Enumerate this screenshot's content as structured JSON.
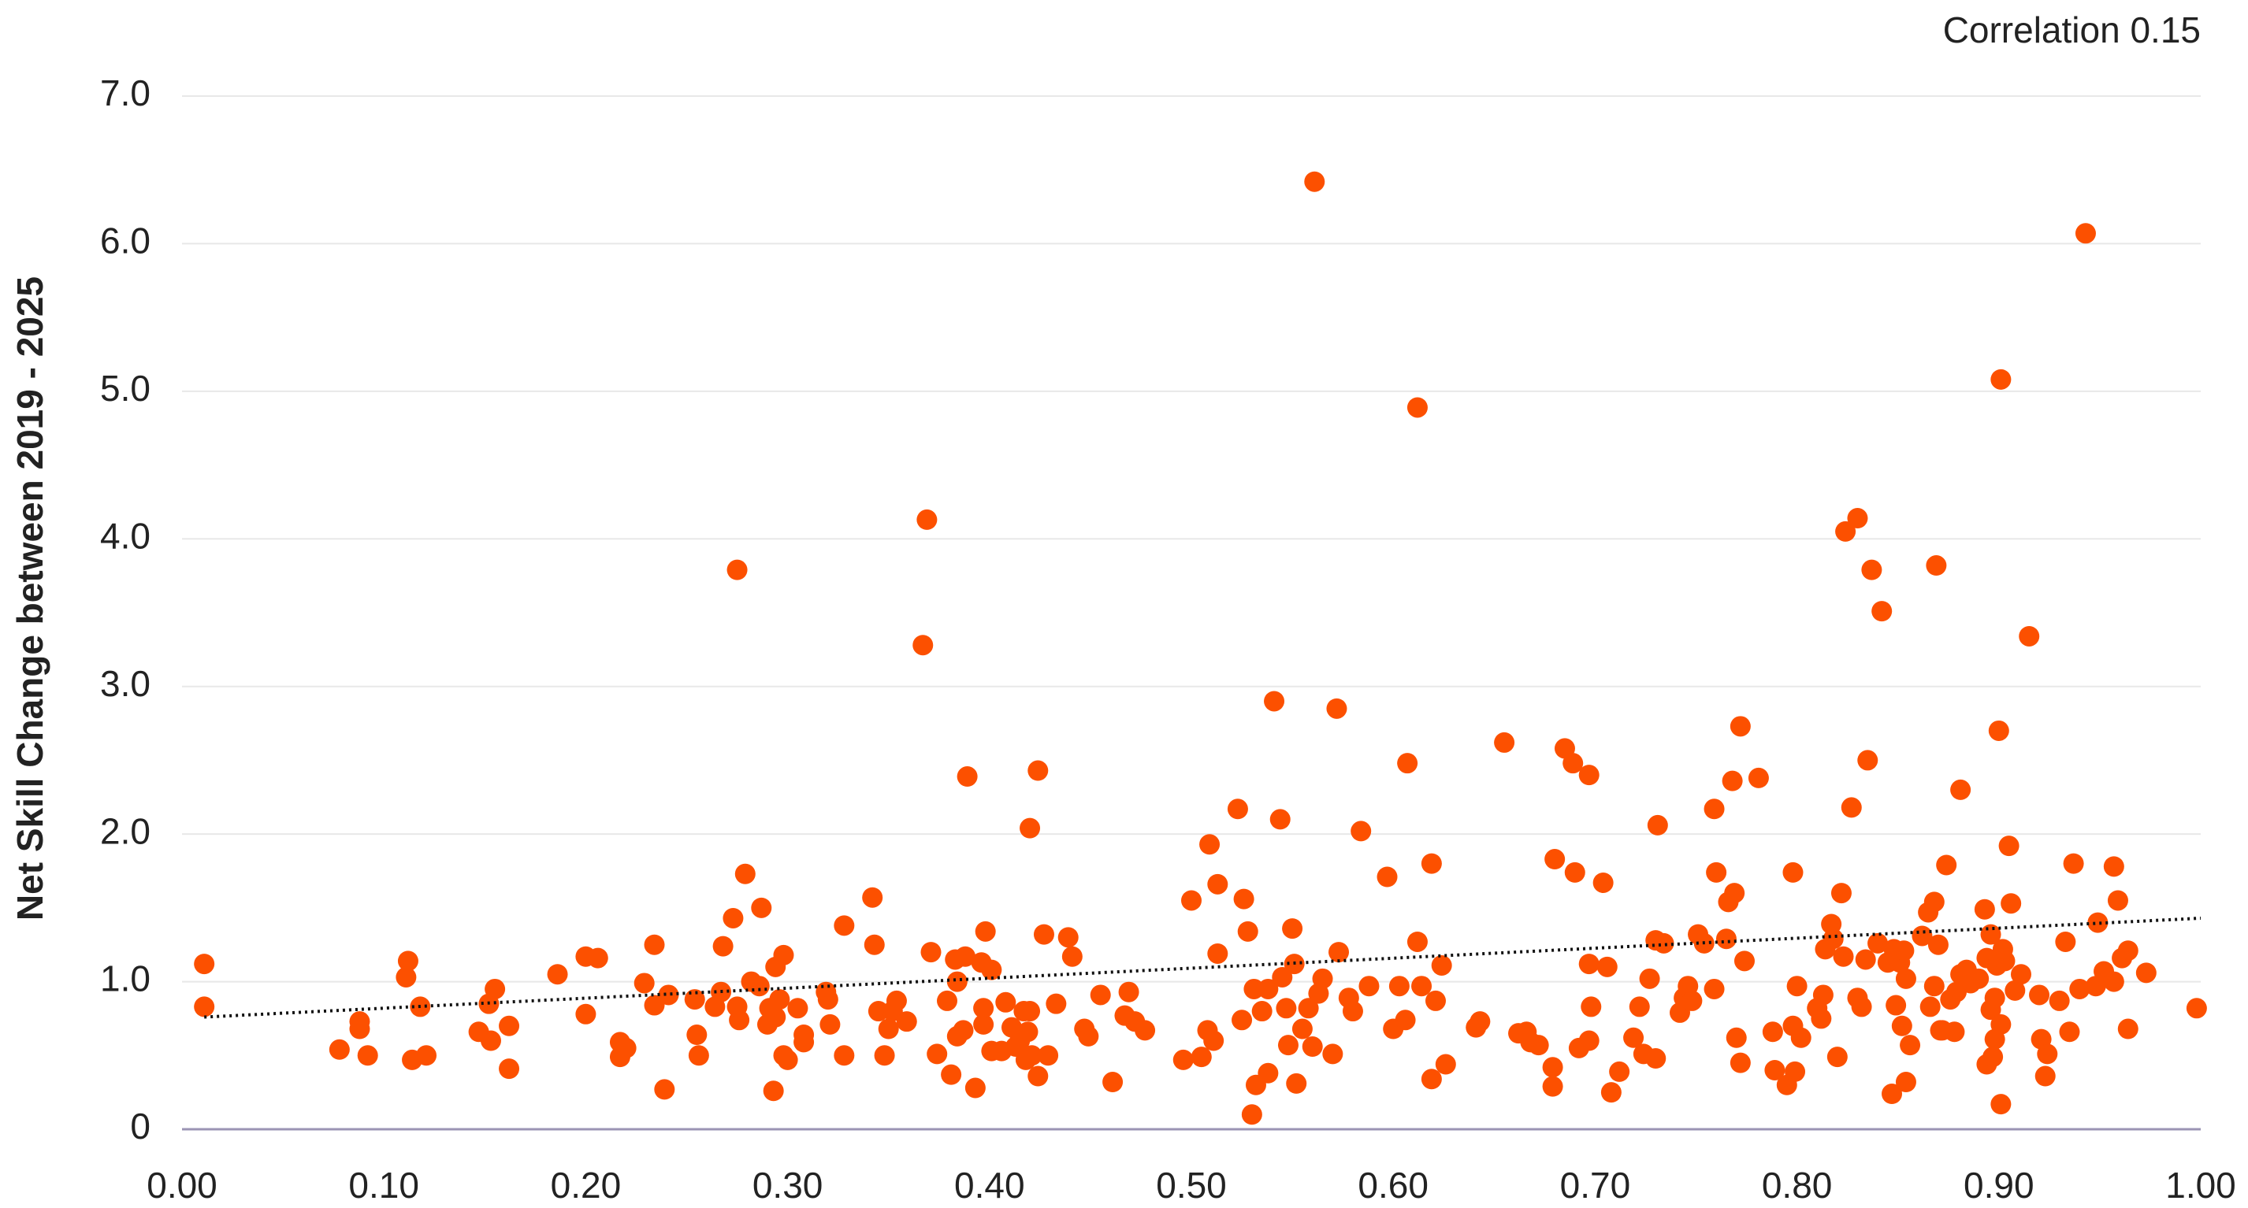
{
  "chart_data": {
    "type": "scatter",
    "annotation": "Correlation 0.15",
    "y_label": "Net Skill Change between 2019 - 2025",
    "color": "#fc5000",
    "x": [
      0.011,
      0.011,
      0.078,
      0.088,
      0.088,
      0.092,
      0.112,
      0.111,
      0.114,
      0.118,
      0.121,
      0.147,
      0.152,
      0.155,
      0.153,
      0.162,
      0.162,
      0.186,
      0.2,
      0.206,
      0.2,
      0.217,
      0.217,
      0.22,
      0.229,
      0.234,
      0.234,
      0.241,
      0.239,
      0.254,
      0.255,
      0.256,
      0.264,
      0.267,
      0.268,
      0.273,
      0.275,
      0.276,
      0.275,
      0.279,
      0.282,
      0.286,
      0.287,
      0.29,
      0.291,
      0.294,
      0.294,
      0.293,
      0.296,
      0.298,
      0.298,
      0.3,
      0.305,
      0.308,
      0.308,
      0.319,
      0.32,
      0.321,
      0.328,
      0.328,
      0.342,
      0.343,
      0.345,
      0.348,
      0.35,
      0.352,
      0.354,
      0.359,
      0.367,
      0.369,
      0.371,
      0.374,
      0.379,
      0.381,
      0.383,
      0.384,
      0.384,
      0.388,
      0.389,
      0.387,
      0.393,
      0.396,
      0.397,
      0.397,
      0.398,
      0.401,
      0.401,
      0.406,
      0.408,
      0.411,
      0.413,
      0.415,
      0.417,
      0.418,
      0.419,
      0.42,
      0.42,
      0.421,
      0.424,
      0.424,
      0.427,
      0.429,
      0.433,
      0.439,
      0.441,
      0.447,
      0.449,
      0.455,
      0.461,
      0.467,
      0.469,
      0.472,
      0.477,
      0.496,
      0.5,
      0.505,
      0.508,
      0.511,
      0.509,
      0.513,
      0.513,
      0.523,
      0.526,
      0.525,
      0.528,
      0.53,
      0.531,
      0.532,
      0.535,
      0.538,
      0.538,
      0.541,
      0.544,
      0.545,
      0.547,
      0.548,
      0.55,
      0.551,
      0.552,
      0.555,
      0.558,
      0.561,
      0.56,
      0.563,
      0.565,
      0.57,
      0.572,
      0.573,
      0.578,
      0.58,
      0.584,
      0.588,
      0.597,
      0.6,
      0.603,
      0.606,
      0.607,
      0.612,
      0.612,
      0.614,
      0.619,
      0.619,
      0.621,
      0.624,
      0.626,
      0.641,
      0.643,
      0.655,
      0.662,
      0.666,
      0.668,
      0.672,
      0.679,
      0.679,
      0.68,
      0.685,
      0.689,
      0.69,
      0.692,
      0.697,
      0.697,
      0.697,
      0.698,
      0.704,
      0.706,
      0.708,
      0.712,
      0.719,
      0.722,
      0.724,
      0.727,
      0.73,
      0.73,
      0.731,
      0.734,
      0.742,
      0.744,
      0.746,
      0.748,
      0.751,
      0.754,
      0.759,
      0.76,
      0.759,
      0.765,
      0.766,
      0.768,
      0.769,
      0.77,
      0.772,
      0.772,
      0.774,
      0.781,
      0.788,
      0.789,
      0.795,
      0.798,
      0.798,
      0.799,
      0.8,
      0.802,
      0.81,
      0.812,
      0.813,
      0.814,
      0.817,
      0.818,
      0.82,
      0.822,
      0.823,
      0.824,
      0.827,
      0.83,
      0.83,
      0.832,
      0.834,
      0.835,
      0.837,
      0.84,
      0.842,
      0.845,
      0.847,
      0.848,
      0.849,
      0.851,
      0.852,
      0.853,
      0.854,
      0.854,
      0.856,
      0.862,
      0.865,
      0.866,
      0.868,
      0.868,
      0.869,
      0.87,
      0.871,
      0.872,
      0.874,
      0.876,
      0.878,
      0.879,
      0.881,
      0.881,
      0.884,
      0.886,
      0.89,
      0.893,
      0.894,
      0.894,
      0.896,
      0.896,
      0.897,
      0.898,
      0.898,
      0.899,
      0.9,
      0.901,
      0.901,
      0.901,
      0.902,
      0.903,
      0.905,
      0.906,
      0.908,
      0.911,
      0.915,
      0.92,
      0.921,
      0.923,
      0.924,
      0.93,
      0.933,
      0.935,
      0.937,
      0.94,
      0.943,
      0.948,
      0.949,
      0.952,
      0.957,
      0.957,
      0.959,
      0.961,
      0.964,
      0.964,
      0.973,
      0.998
    ],
    "values": [
      1.12,
      0.83,
      0.54,
      0.73,
      0.68,
      0.5,
      1.14,
      1.03,
      0.47,
      0.83,
      0.5,
      0.66,
      0.85,
      0.95,
      0.6,
      0.7,
      0.41,
      1.05,
      1.17,
      1.16,
      0.78,
      0.59,
      0.49,
      0.55,
      0.99,
      1.25,
      0.84,
      0.91,
      0.27,
      0.88,
      0.64,
      0.5,
      0.83,
      0.93,
      1.24,
      1.43,
      3.79,
      0.74,
      0.83,
      1.73,
      1.0,
      0.97,
      1.5,
      0.71,
      0.82,
      0.76,
      1.1,
      0.26,
      0.88,
      1.18,
      0.5,
      0.47,
      0.82,
      0.59,
      0.64,
      0.93,
      0.88,
      0.71,
      1.38,
      0.5,
      1.57,
      1.25,
      0.8,
      0.5,
      0.68,
      0.8,
      0.87,
      0.73,
      3.28,
      4.13,
      1.2,
      0.51,
      0.87,
      0.37,
      1.15,
      1.0,
      0.63,
      1.17,
      2.39,
      0.67,
      0.28,
      1.13,
      0.71,
      0.82,
      1.34,
      1.08,
      0.53,
      0.53,
      0.86,
      0.69,
      0.56,
      0.6,
      0.8,
      0.47,
      0.66,
      2.04,
      0.8,
      0.5,
      2.43,
      0.36,
      1.32,
      0.5,
      0.85,
      1.3,
      1.17,
      0.68,
      0.63,
      0.91,
      0.32,
      0.77,
      0.93,
      0.73,
      0.67,
      0.47,
      1.55,
      0.49,
      0.67,
      0.6,
      1.93,
      1.66,
      1.19,
      2.17,
      1.56,
      0.74,
      1.34,
      0.1,
      0.95,
      0.3,
      0.8,
      0.38,
      0.95,
      2.9,
      2.1,
      1.03,
      0.82,
      0.57,
      1.36,
      1.12,
      0.31,
      0.68,
      0.82,
      6.42,
      0.56,
      0.92,
      1.02,
      0.51,
      2.85,
      1.2,
      0.89,
      0.8,
      2.02,
      0.97,
      1.71,
      0.68,
      0.97,
      0.74,
      2.48,
      4.89,
      1.27,
      0.97,
      0.34,
      1.8,
      0.87,
      1.11,
      0.44,
      0.69,
      0.73,
      2.62,
      0.65,
      0.66,
      0.59,
      0.57,
      0.42,
      0.29,
      1.83,
      2.58,
      2.48,
      1.74,
      0.55,
      2.4,
      0.6,
      1.12,
      0.83,
      1.67,
      1.1,
      0.25,
      0.39,
      0.62,
      0.83,
      0.51,
      1.02,
      0.48,
      1.28,
      2.06,
      1.26,
      0.79,
      0.89,
      0.97,
      0.87,
      1.32,
      1.26,
      2.17,
      1.74,
      0.95,
      1.29,
      1.54,
      2.36,
      1.6,
      0.62,
      2.73,
      0.45,
      1.14,
      2.38,
      0.66,
      0.4,
      0.3,
      1.74,
      0.7,
      0.39,
      0.97,
      0.62,
      0.82,
      0.75,
      0.91,
      1.22,
      1.39,
      1.29,
      0.49,
      1.6,
      1.17,
      4.05,
      2.18,
      4.14,
      0.89,
      0.83,
      1.15,
      2.5,
      3.79,
      1.26,
      3.51,
      1.13,
      0.24,
      1.22,
      0.84,
      1.13,
      0.7,
      1.21,
      1.02,
      0.32,
      0.57,
      1.31,
      1.47,
      0.83,
      1.54,
      0.97,
      3.82,
      1.25,
      0.67,
      0.67,
      1.79,
      0.88,
      0.66,
      0.93,
      2.3,
      1.05,
      1.08,
      0.99,
      1.02,
      1.49,
      1.16,
      0.44,
      1.32,
      0.81,
      0.49,
      0.89,
      0.61,
      1.11,
      2.7,
      5.08,
      0.17,
      0.71,
      1.22,
      1.14,
      1.92,
      1.53,
      0.94,
      1.05,
      3.34,
      0.91,
      0.61,
      0.36,
      0.51,
      0.87,
      1.27,
      0.66,
      1.8,
      0.95,
      6.07,
      0.97,
      1.4,
      1.07,
      1.0,
      1.78,
      1.55,
      1.16,
      1.21,
      0.68,
      1.06,
      0.82
    ],
    "trendline": {
      "x": [
        0.011,
        1.0
      ],
      "y": [
        0.76,
        1.43
      ]
    },
    "xlim": [
      0,
      1
    ],
    "ylim": [
      0,
      7
    ],
    "xticks": [
      {
        "value": 0,
        "label": "0.00"
      },
      {
        "value": 0.1,
        "label": "0.10"
      },
      {
        "value": 0.2,
        "label": "0.20"
      },
      {
        "value": 0.3,
        "label": "0.30"
      },
      {
        "value": 0.4,
        "label": "0.40"
      },
      {
        "value": 0.5,
        "label": "0.50"
      },
      {
        "value": 0.6,
        "label": "0.60"
      },
      {
        "value": 0.7,
        "label": "0.70"
      },
      {
        "value": 0.8,
        "label": "0.80"
      },
      {
        "value": 0.9,
        "label": "0.90"
      },
      {
        "value": 1,
        "label": "1.00"
      }
    ],
    "yticks": [
      0,
      {
        "value": 1,
        "label": "1.0"
      },
      {
        "value": 2,
        "label": "2.0"
      },
      {
        "value": 3,
        "label": "3.0"
      },
      {
        "value": 4,
        "label": "4.0"
      },
      {
        "value": 5,
        "label": "5.0"
      },
      {
        "value": 6,
        "label": "6.0"
      },
      {
        "value": 7,
        "label": "7.0"
      }
    ],
    "grid": true
  }
}
